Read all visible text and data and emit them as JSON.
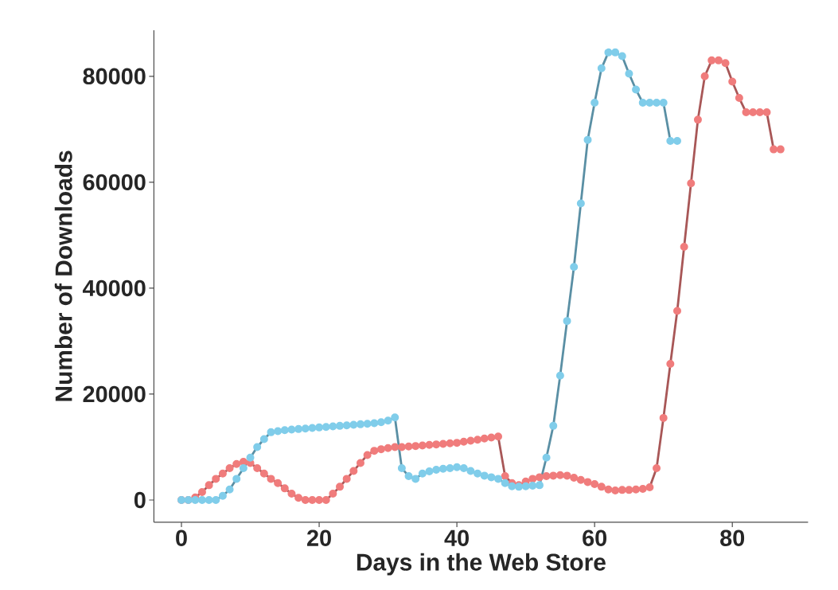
{
  "chart_data": {
    "type": "line",
    "xlabel": "Days in the Web Store",
    "ylabel": "Number of Downloads",
    "xlim": [
      -4,
      91
    ],
    "ylim": [
      -4200,
      88700
    ],
    "xticks": [
      0,
      20,
      40,
      60,
      80
    ],
    "yticks": [
      0,
      20000,
      40000,
      60000,
      80000
    ],
    "marker": "circle",
    "series": [
      {
        "color": "#f07c7c",
        "x": [
          0,
          1,
          2,
          3,
          4,
          5,
          6,
          7,
          8,
          9,
          10,
          11,
          12,
          13,
          14,
          15,
          16,
          17,
          18,
          19,
          20,
          21,
          22,
          23,
          24,
          25,
          26,
          27,
          28,
          29,
          30,
          31,
          32,
          33,
          34,
          35,
          36,
          37,
          38,
          39,
          40,
          41,
          42,
          43,
          44,
          45,
          46,
          47,
          48,
          49,
          50,
          51,
          52,
          53,
          54,
          55,
          56,
          57,
          58,
          59,
          60,
          61,
          62,
          63,
          64,
          65,
          66,
          67,
          68,
          69,
          70,
          71,
          72,
          73,
          74,
          75,
          76,
          77,
          78,
          79,
          80,
          81,
          82,
          83,
          84,
          85,
          86,
          87
        ],
        "values": [
          0,
          0,
          500,
          1500,
          2800,
          4000,
          5000,
          6000,
          6800,
          7200,
          7000,
          6000,
          5000,
          4000,
          3200,
          2200,
          1200,
          400,
          0,
          0,
          0,
          0,
          1200,
          2500,
          4000,
          5500,
          7000,
          8500,
          9300,
          9600,
          9800,
          10000,
          10000,
          10100,
          10200,
          10300,
          10400,
          10500,
          10600,
          10700,
          10800,
          11000,
          11200,
          11400,
          11600,
          11800,
          12000,
          4500,
          3200,
          2800,
          3500,
          4000,
          4300,
          4500,
          4600,
          4700,
          4600,
          4200,
          3800,
          3400,
          3000,
          2500,
          2000,
          1800,
          1900,
          1900,
          2000,
          2100,
          2400,
          6000,
          15500,
          25700,
          35700,
          47800,
          59800,
          71800,
          80000,
          83000,
          83000,
          82500,
          79000,
          75900,
          73200,
          73200,
          73200,
          73200,
          66200,
          66200
        ]
      },
      {
        "color": "#80cdea",
        "x": [
          0,
          1,
          2,
          3,
          4,
          5,
          6,
          7,
          8,
          9,
          10,
          11,
          12,
          13,
          14,
          15,
          16,
          17,
          18,
          19,
          20,
          21,
          22,
          23,
          24,
          25,
          26,
          27,
          28,
          29,
          30,
          31,
          32,
          33,
          34,
          35,
          36,
          37,
          38,
          39,
          40,
          41,
          42,
          43,
          44,
          45,
          46,
          47,
          48,
          49,
          50,
          51,
          52,
          53,
          54,
          55,
          56,
          57,
          58,
          59,
          60,
          61,
          62,
          63,
          64,
          65,
          66,
          67,
          68,
          69,
          70,
          71,
          72
        ],
        "values": [
          0,
          0,
          0,
          0,
          0,
          0,
          800,
          2000,
          4000,
          6000,
          8000,
          10000,
          11500,
          12800,
          13000,
          13200,
          13300,
          13400,
          13500,
          13600,
          13700,
          13800,
          13900,
          14000,
          14100,
          14200,
          14300,
          14400,
          14500,
          14700,
          15000,
          15600,
          6000,
          4500,
          4000,
          5000,
          5400,
          5700,
          5900,
          6000,
          6200,
          6000,
          5500,
          5000,
          4600,
          4300,
          4000,
          3200,
          2600,
          2500,
          2600,
          2700,
          2800,
          8000,
          14000,
          23500,
          33800,
          44000,
          56000,
          68000,
          75000,
          81500,
          84500,
          84500,
          83800,
          80500,
          77500,
          75000,
          75000,
          75000,
          75000,
          67800,
          67800
        ]
      }
    ]
  }
}
